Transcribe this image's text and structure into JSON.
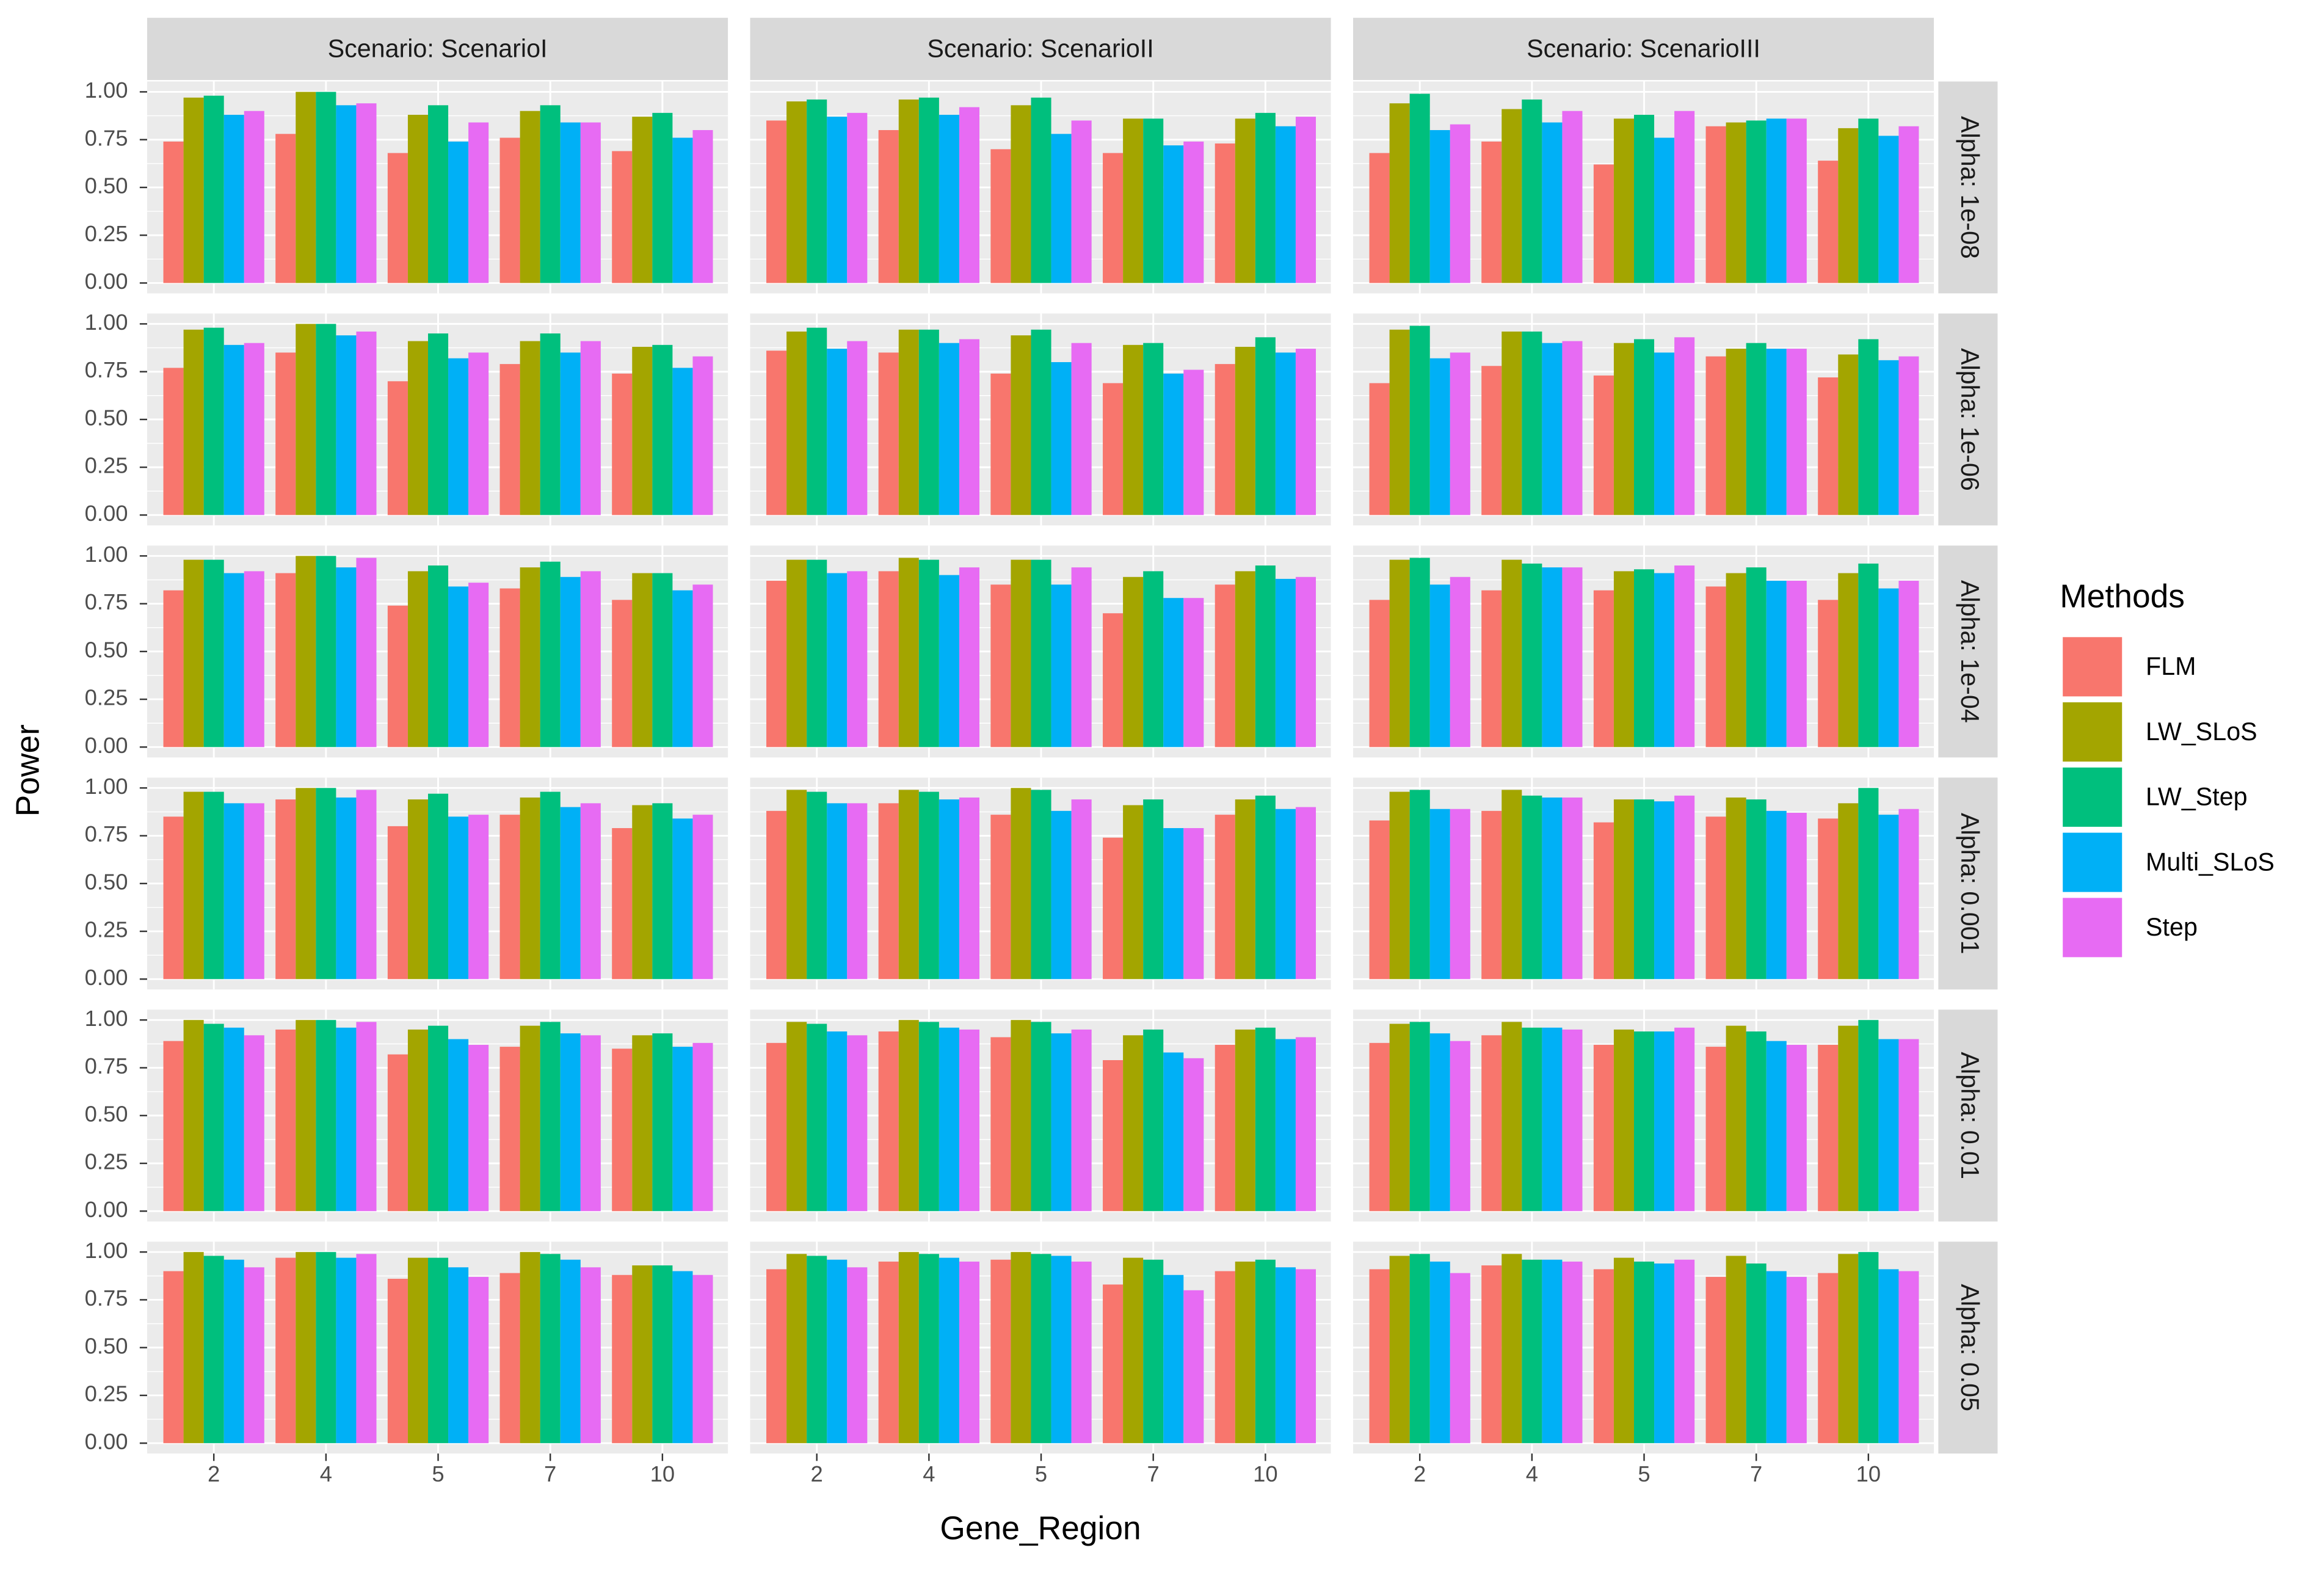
{
  "chart_data": {
    "type": "bar",
    "xlabel": "Gene_Region",
    "ylabel": "Power",
    "legend_title": "Methods",
    "legend_position": "right",
    "grid": true,
    "categories": [
      "2",
      "4",
      "5",
      "7",
      "10"
    ],
    "series": [
      {
        "name": "FLM",
        "color": "#F8766D"
      },
      {
        "name": "LW_SLoS",
        "color": "#A3A500"
      },
      {
        "name": "LW_Step",
        "color": "#00BF7D"
      },
      {
        "name": "Multi_SLoS",
        "color": "#00B0F6"
      },
      {
        "name": "Step",
        "color": "#E76BF3"
      }
    ],
    "facet_cols": [
      "Scenario: ScenarioI",
      "Scenario: ScenarioII",
      "Scenario: ScenarioIII"
    ],
    "facet_rows": [
      "Alpha: 1e-08",
      "Alpha: 1e-06",
      "Alpha: 1e-04",
      "Alpha: 0.001",
      "Alpha: 0.01",
      "Alpha: 0.05"
    ],
    "ylim": [
      0,
      1.04
    ],
    "yticks": [
      {
        "value": 0,
        "label": "0.00"
      },
      {
        "value": 0.25,
        "label": "0.25"
      },
      {
        "value": 0.5,
        "label": "0.50"
      },
      {
        "value": 0.75,
        "label": "0.75"
      },
      {
        "value": 1,
        "label": "1.00"
      }
    ],
    "panels": [
      [
        [
          [
            0.74,
            0.97,
            0.98,
            0.88,
            0.9
          ],
          [
            0.78,
            1.0,
            1.0,
            0.93,
            0.94
          ],
          [
            0.68,
            0.88,
            0.93,
            0.74,
            0.84
          ],
          [
            0.76,
            0.9,
            0.93,
            0.84,
            0.84
          ],
          [
            0.69,
            0.87,
            0.89,
            0.76,
            0.8
          ]
        ],
        [
          [
            0.85,
            0.95,
            0.96,
            0.87,
            0.89
          ],
          [
            0.8,
            0.96,
            0.97,
            0.88,
            0.92
          ],
          [
            0.7,
            0.93,
            0.97,
            0.78,
            0.85
          ],
          [
            0.68,
            0.86,
            0.86,
            0.72,
            0.74
          ],
          [
            0.73,
            0.86,
            0.89,
            0.82,
            0.87
          ]
        ],
        [
          [
            0.68,
            0.94,
            0.99,
            0.8,
            0.83
          ],
          [
            0.74,
            0.91,
            0.96,
            0.84,
            0.9
          ],
          [
            0.62,
            0.86,
            0.88,
            0.76,
            0.9
          ],
          [
            0.82,
            0.84,
            0.85,
            0.86,
            0.86
          ],
          [
            0.64,
            0.81,
            0.86,
            0.77,
            0.82
          ]
        ]
      ],
      [
        [
          [
            0.77,
            0.97,
            0.98,
            0.89,
            0.9
          ],
          [
            0.85,
            1.0,
            1.0,
            0.94,
            0.96
          ],
          [
            0.7,
            0.91,
            0.95,
            0.82,
            0.85
          ],
          [
            0.79,
            0.91,
            0.95,
            0.85,
            0.91
          ],
          [
            0.74,
            0.88,
            0.89,
            0.77,
            0.83
          ]
        ],
        [
          [
            0.86,
            0.96,
            0.98,
            0.87,
            0.91
          ],
          [
            0.85,
            0.97,
            0.97,
            0.9,
            0.92
          ],
          [
            0.74,
            0.94,
            0.97,
            0.8,
            0.9
          ],
          [
            0.69,
            0.89,
            0.9,
            0.74,
            0.76
          ],
          [
            0.79,
            0.88,
            0.93,
            0.85,
            0.87
          ]
        ],
        [
          [
            0.69,
            0.97,
            0.99,
            0.82,
            0.85
          ],
          [
            0.78,
            0.96,
            0.96,
            0.9,
            0.91
          ],
          [
            0.73,
            0.9,
            0.92,
            0.85,
            0.93
          ],
          [
            0.83,
            0.87,
            0.9,
            0.87,
            0.87
          ],
          [
            0.72,
            0.84,
            0.92,
            0.81,
            0.83
          ]
        ]
      ],
      [
        [
          [
            0.82,
            0.98,
            0.98,
            0.91,
            0.92
          ],
          [
            0.91,
            1.0,
            1.0,
            0.94,
            0.99
          ],
          [
            0.74,
            0.92,
            0.95,
            0.84,
            0.86
          ],
          [
            0.83,
            0.94,
            0.97,
            0.89,
            0.92
          ],
          [
            0.77,
            0.91,
            0.91,
            0.82,
            0.85
          ]
        ],
        [
          [
            0.87,
            0.98,
            0.98,
            0.91,
            0.92
          ],
          [
            0.92,
            0.99,
            0.98,
            0.9,
            0.94
          ],
          [
            0.85,
            0.98,
            0.98,
            0.85,
            0.94
          ],
          [
            0.7,
            0.89,
            0.92,
            0.78,
            0.78
          ],
          [
            0.85,
            0.92,
            0.95,
            0.88,
            0.89
          ]
        ],
        [
          [
            0.77,
            0.98,
            0.99,
            0.85,
            0.89
          ],
          [
            0.82,
            0.98,
            0.96,
            0.94,
            0.94
          ],
          [
            0.82,
            0.92,
            0.93,
            0.91,
            0.95
          ],
          [
            0.84,
            0.91,
            0.94,
            0.87,
            0.87
          ],
          [
            0.77,
            0.91,
            0.96,
            0.83,
            0.87
          ]
        ]
      ],
      [
        [
          [
            0.85,
            0.98,
            0.98,
            0.92,
            0.92
          ],
          [
            0.94,
            1.0,
            1.0,
            0.95,
            0.99
          ],
          [
            0.8,
            0.94,
            0.97,
            0.85,
            0.86
          ],
          [
            0.86,
            0.95,
            0.98,
            0.9,
            0.92
          ],
          [
            0.79,
            0.91,
            0.92,
            0.84,
            0.86
          ]
        ],
        [
          [
            0.88,
            0.99,
            0.98,
            0.92,
            0.92
          ],
          [
            0.92,
            0.99,
            0.98,
            0.94,
            0.95
          ],
          [
            0.86,
            1.0,
            0.99,
            0.88,
            0.94
          ],
          [
            0.74,
            0.91,
            0.94,
            0.79,
            0.79
          ],
          [
            0.86,
            0.94,
            0.96,
            0.89,
            0.9
          ]
        ],
        [
          [
            0.83,
            0.98,
            0.99,
            0.89,
            0.89
          ],
          [
            0.88,
            0.99,
            0.96,
            0.95,
            0.95
          ],
          [
            0.82,
            0.94,
            0.94,
            0.93,
            0.96
          ],
          [
            0.85,
            0.95,
            0.94,
            0.88,
            0.87
          ],
          [
            0.84,
            0.92,
            1.0,
            0.86,
            0.89
          ]
        ]
      ],
      [
        [
          [
            0.89,
            1.0,
            0.98,
            0.96,
            0.92
          ],
          [
            0.95,
            1.0,
            1.0,
            0.96,
            0.99
          ],
          [
            0.82,
            0.95,
            0.97,
            0.9,
            0.87
          ],
          [
            0.86,
            0.97,
            0.99,
            0.93,
            0.92
          ],
          [
            0.85,
            0.92,
            0.93,
            0.86,
            0.88
          ]
        ],
        [
          [
            0.88,
            0.99,
            0.98,
            0.94,
            0.92
          ],
          [
            0.94,
            1.0,
            0.99,
            0.96,
            0.95
          ],
          [
            0.91,
            1.0,
            0.99,
            0.93,
            0.95
          ],
          [
            0.79,
            0.92,
            0.95,
            0.83,
            0.8
          ],
          [
            0.87,
            0.95,
            0.96,
            0.9,
            0.91
          ]
        ],
        [
          [
            0.88,
            0.98,
            0.99,
            0.93,
            0.89
          ],
          [
            0.92,
            0.99,
            0.96,
            0.96,
            0.95
          ],
          [
            0.87,
            0.95,
            0.94,
            0.94,
            0.96
          ],
          [
            0.86,
            0.97,
            0.94,
            0.89,
            0.87
          ],
          [
            0.87,
            0.97,
            1.0,
            0.9,
            0.9
          ]
        ]
      ],
      [
        [
          [
            0.9,
            1.0,
            0.98,
            0.96,
            0.92
          ],
          [
            0.97,
            1.0,
            1.0,
            0.97,
            0.99
          ],
          [
            0.86,
            0.97,
            0.97,
            0.92,
            0.87
          ],
          [
            0.89,
            1.0,
            0.99,
            0.96,
            0.92
          ],
          [
            0.88,
            0.93,
            0.93,
            0.9,
            0.88
          ]
        ],
        [
          [
            0.91,
            0.99,
            0.98,
            0.96,
            0.92
          ],
          [
            0.95,
            1.0,
            0.99,
            0.97,
            0.95
          ],
          [
            0.96,
            1.0,
            0.99,
            0.98,
            0.95
          ],
          [
            0.83,
            0.97,
            0.96,
            0.88,
            0.8
          ],
          [
            0.9,
            0.95,
            0.96,
            0.92,
            0.91
          ]
        ],
        [
          [
            0.91,
            0.98,
            0.99,
            0.95,
            0.89
          ],
          [
            0.93,
            0.99,
            0.96,
            0.96,
            0.95
          ],
          [
            0.91,
            0.97,
            0.95,
            0.94,
            0.96
          ],
          [
            0.87,
            0.98,
            0.94,
            0.9,
            0.87
          ],
          [
            0.89,
            0.99,
            1.0,
            0.91,
            0.9
          ]
        ]
      ]
    ]
  }
}
